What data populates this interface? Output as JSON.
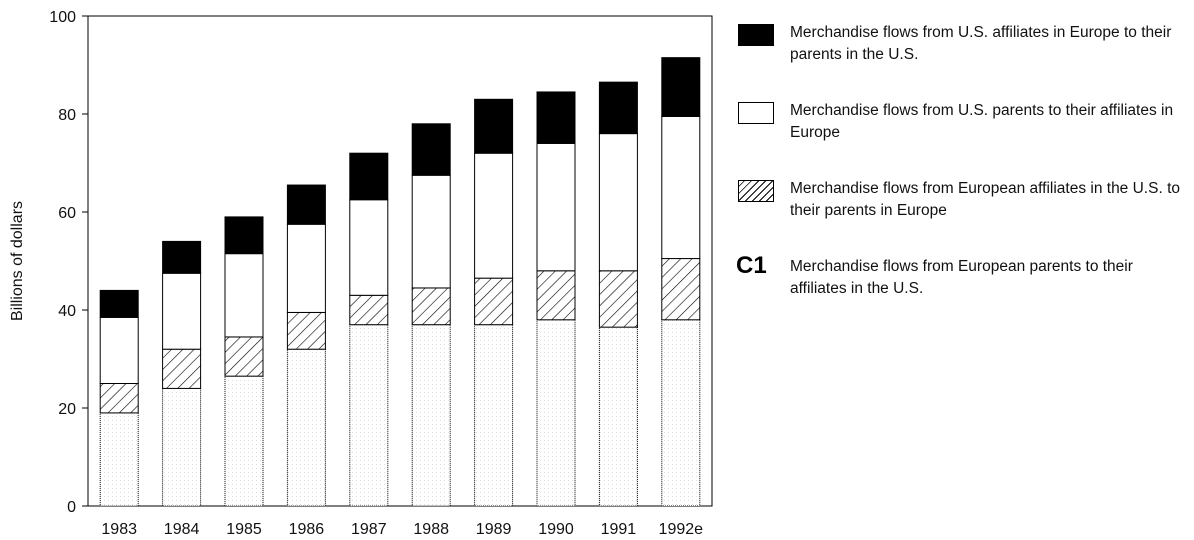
{
  "chart_data": {
    "type": "stacked_bar",
    "ylabel": "Billions of dollars",
    "categories": [
      "1983",
      "1984",
      "1985",
      "1986",
      "1987",
      "1988",
      "1989",
      "1990",
      "1991",
      "1992e"
    ],
    "ylim": [
      0,
      100
    ],
    "yticks": [
      0,
      20,
      40,
      60,
      80,
      100
    ],
    "series": [
      {
        "name": "Merchandise flows from European parents to their affiliates in the U.S.",
        "color": "#ffffff",
        "pattern": "dots",
        "marker_label": "C1",
        "values": [
          19,
          24,
          26.5,
          32,
          37,
          37,
          37,
          38,
          36.5,
          38
        ]
      },
      {
        "name": "Merchandise flows from European affiliates in the U.S. to their parents in Europe",
        "color": "#ffffff",
        "pattern": "hatch",
        "values": [
          6,
          8,
          8,
          7.5,
          6,
          7.5,
          9.5,
          10,
          11.5,
          12.5
        ]
      },
      {
        "name": "Merchandise flows from U.S. parents to their affiliates in Europe",
        "color": "#ffffff",
        "values": [
          13.5,
          15.5,
          17,
          18,
          19.5,
          23,
          25.5,
          26,
          28,
          29
        ]
      },
      {
        "name": "Merchandise flows from U.S. affiliates in Europe to their parents in the U.S.",
        "color": "#000000",
        "values": [
          5.5,
          6.5,
          7.5,
          8,
          9.5,
          10.5,
          11,
          10.5,
          10.5,
          12
        ]
      }
    ],
    "legend": "right"
  }
}
